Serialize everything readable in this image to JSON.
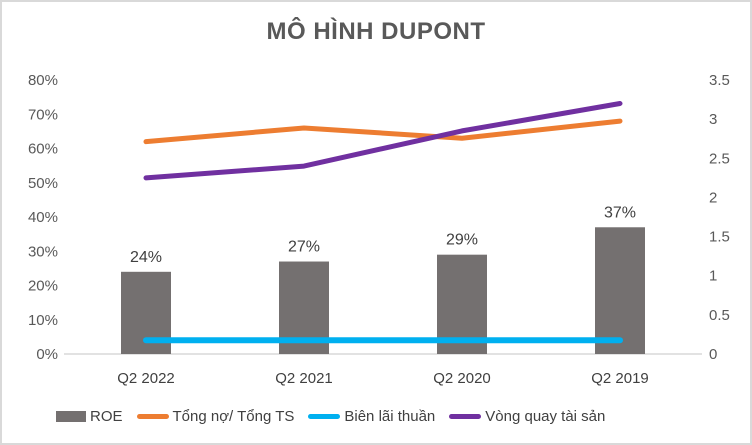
{
  "window": {
    "background": "#FFFFFF",
    "border_color": "#D9D9D9"
  },
  "chart_data": {
    "type": "combo-bar-line",
    "title": "MÔ HÌNH DUPONT",
    "categories": [
      "Q2 2022",
      "Q2 2021",
      "Q2 2020",
      "Q2 2019"
    ],
    "left_axis": {
      "min": 0,
      "max": 80,
      "unit": "percent",
      "tick_labels": [
        "0%",
        "10%",
        "20%",
        "30%",
        "40%",
        "50%",
        "60%",
        "70%",
        "80%"
      ]
    },
    "right_axis": {
      "min": 0,
      "max": 3.5,
      "unit": "ratio",
      "tick_labels": [
        "0",
        "0.5",
        "1",
        "1.5",
        "2",
        "2.5",
        "3",
        "3.5"
      ]
    },
    "series": [
      {
        "name": "ROE",
        "type": "bar",
        "axis": "left",
        "color": "#747070",
        "values": [
          24,
          27,
          29,
          37
        ],
        "data_labels": [
          "24%",
          "27%",
          "29%",
          "37%"
        ]
      },
      {
        "name": "Tổng nợ/ Tổng TS",
        "type": "line",
        "axis": "left",
        "color": "#ED7D31",
        "values": [
          62,
          66,
          63,
          68
        ]
      },
      {
        "name": "Biên lãi thuần",
        "type": "line",
        "axis": "left",
        "color": "#00B0F0",
        "values": [
          4,
          4,
          4,
          4
        ]
      },
      {
        "name": "Vòng quay tài sản",
        "type": "line",
        "axis": "right",
        "color": "#7030A0",
        "values": [
          2.25,
          2.4,
          2.85,
          3.2
        ]
      }
    ],
    "legend_position": "bottom",
    "grid": false,
    "axis_line_color": "#D9D9D9"
  }
}
